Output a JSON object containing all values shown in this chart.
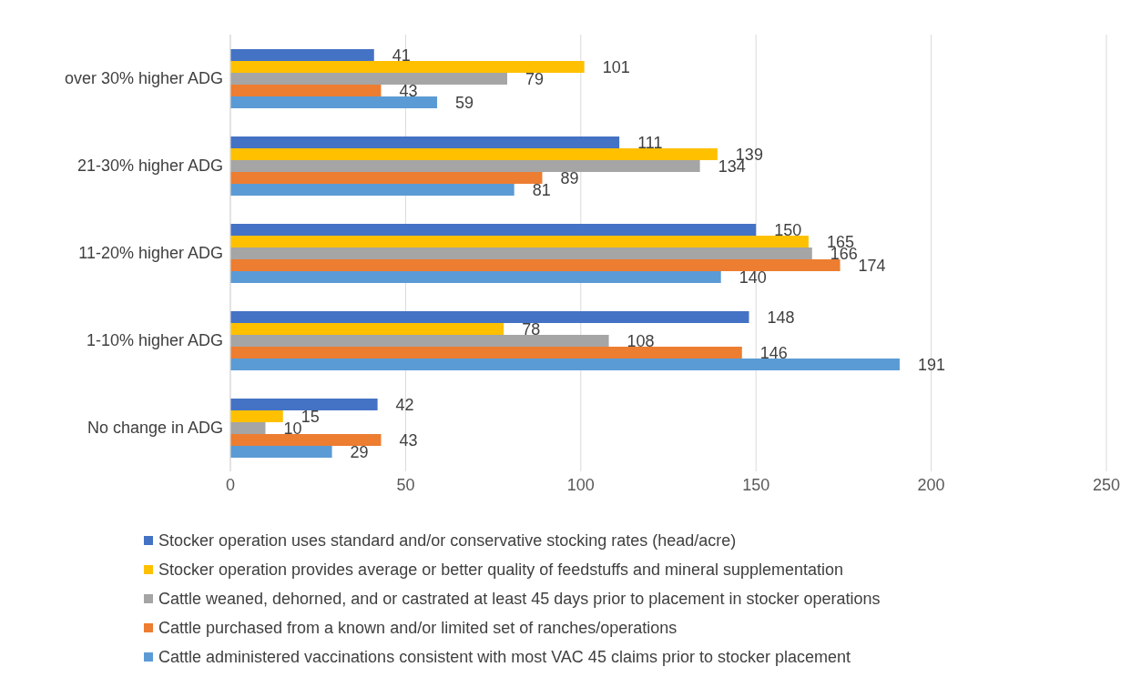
{
  "chart_data": {
    "type": "bar",
    "orientation": "horizontal",
    "categories": [
      "over 30% higher ADG",
      "21-30% higher ADG",
      "11-20% higher ADG",
      "1-10% higher ADG",
      "No change in ADG"
    ],
    "series": [
      {
        "name": "Stocker operation uses standard and/or conservative stocking rates (head/acre)",
        "color": "#4472c4",
        "values": [
          41,
          111,
          150,
          148,
          42
        ]
      },
      {
        "name": "Stocker operation provides average or better quality of feedstuffs and mineral supplementation",
        "color": "#ffc000",
        "values": [
          101,
          139,
          165,
          78,
          15
        ]
      },
      {
        "name": "Cattle weaned, dehorned, and or castrated at least 45 days prior to placement in stocker operations",
        "color": "#a5a5a5",
        "values": [
          79,
          134,
          166,
          108,
          10
        ]
      },
      {
        "name": "Cattle purchased from a known and/or limited set of ranches/operations",
        "color": "#ed7d31",
        "values": [
          43,
          89,
          174,
          146,
          43
        ]
      },
      {
        "name": "Cattle administered vaccinations consistent with most VAC 45 claims prior to stocker placement",
        "color": "#5b9bd5",
        "values": [
          59,
          81,
          140,
          191,
          29
        ]
      }
    ],
    "xlim": [
      0,
      250
    ],
    "xticks": [
      0,
      50,
      100,
      150,
      200,
      250
    ],
    "grid": "x",
    "legend": "bottom",
    "data_labels": true
  }
}
